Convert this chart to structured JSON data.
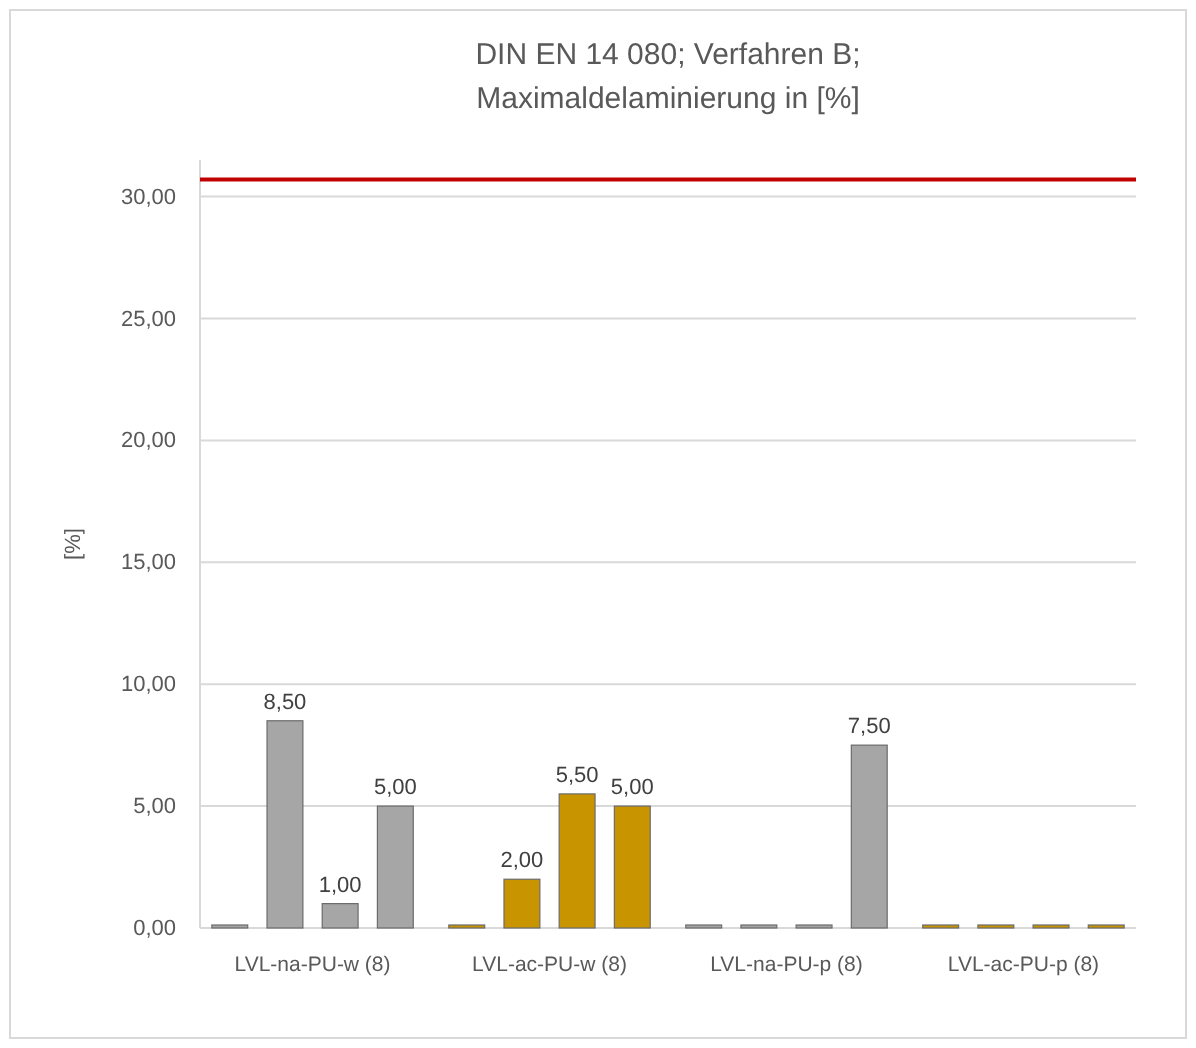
{
  "chart_data": {
    "type": "bar",
    "title": "DIN EN 14 080; Verfahren B; Maximaldelaminierung in [%]",
    "ylabel": "[%]",
    "categories": [
      "LVL-na-PU-w (8)",
      "LVL-ac-PU-w (8)",
      "LVL-na-PU-p (8)",
      "LVL-ac-PU-p (8)"
    ],
    "series": [
      {
        "colors": [
          "#a6a6a6",
          "#c89400",
          "#a6a6a6",
          "#c89400"
        ],
        "values": [
          0,
          0,
          0,
          0
        ],
        "value_labels": [
          null,
          null,
          null,
          null
        ]
      },
      {
        "colors": [
          "#a6a6a6",
          "#c89400",
          "#a6a6a6",
          "#c89400"
        ],
        "values": [
          8.5,
          2,
          0,
          0
        ],
        "value_labels": [
          "8,50",
          "2,00",
          null,
          null
        ]
      },
      {
        "colors": [
          "#a6a6a6",
          "#c89400",
          "#a6a6a6",
          "#c89400"
        ],
        "values": [
          1,
          5.5,
          0,
          0
        ],
        "value_labels": [
          "1,00",
          "5,50",
          null,
          null
        ]
      },
      {
        "colors": [
          "#a6a6a6",
          "#c89400",
          "#a6a6a6",
          "#c89400"
        ],
        "values": [
          5,
          5,
          7.5,
          0
        ],
        "value_labels": [
          "5,00",
          "5,00",
          "7,50",
          null
        ]
      }
    ],
    "ylim": [
      0,
      31.5
    ],
    "yticks": [
      {
        "value": 0,
        "label": "0,00"
      },
      {
        "value": 5,
        "label": "5,00"
      },
      {
        "value": 10,
        "label": "10,00"
      },
      {
        "value": 15,
        "label": "15,00"
      },
      {
        "value": 20,
        "label": "20,00"
      },
      {
        "value": 25,
        "label": "25,00"
      },
      {
        "value": 30,
        "label": "30,00"
      }
    ],
    "ref_lines": [
      {
        "axis": "y",
        "value": 30.7,
        "color": "#c00000"
      }
    ],
    "grid": "y"
  }
}
